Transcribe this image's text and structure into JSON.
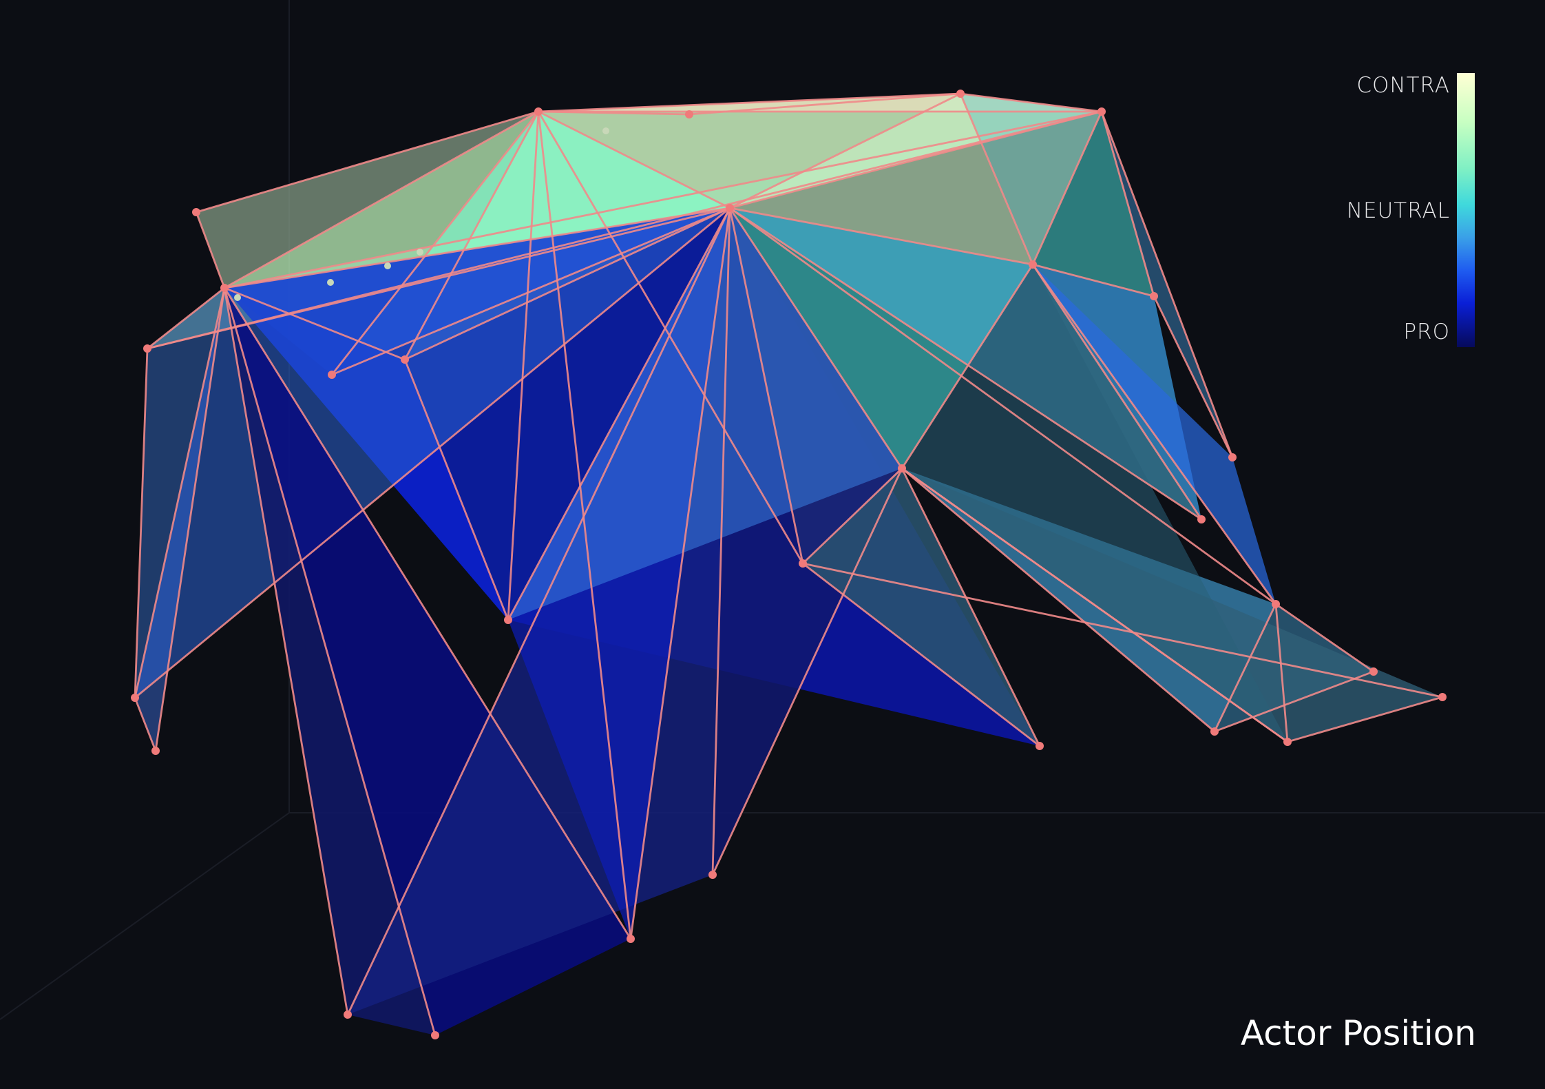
{
  "title": "Actor Position",
  "legend": {
    "top_label": "CONTRA",
    "mid_label": "NEUTRAL",
    "bottom_label": "PRO"
  },
  "colors": {
    "background": "#0c0e14",
    "edge": "#f08a8a",
    "node": "#f07a7a",
    "scale": [
      "#060a5a",
      "#0a1fd6",
      "#1f5cf0",
      "#3aa0e8",
      "#3fd9dc",
      "#7ff0c4",
      "#c7ffc2",
      "#ffffd4"
    ]
  }
}
